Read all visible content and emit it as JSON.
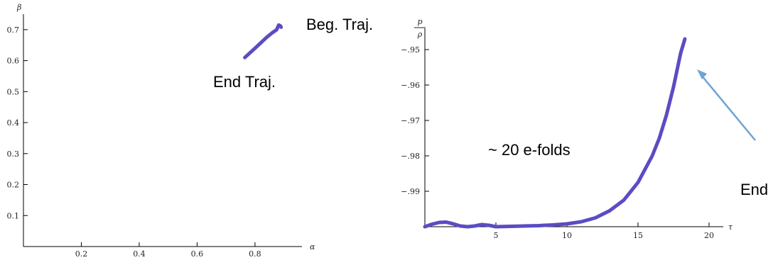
{
  "chart_data": [
    {
      "type": "line",
      "xlabel": "α",
      "ylabel": "β",
      "xlim": [
        0,
        0.95
      ],
      "ylim": [
        0,
        0.75
      ],
      "xticks": [
        0.2,
        0.4,
        0.6,
        0.8
      ],
      "yticks": [
        0.1,
        0.2,
        0.3,
        0.4,
        0.5,
        0.6,
        0.7
      ],
      "series": [
        {
          "x": [
            0.765,
            0.8,
            0.84,
            0.86,
            0.875,
            0.882,
            0.888,
            0.89
          ],
          "y": [
            0.61,
            0.64,
            0.675,
            0.69,
            0.7,
            0.715,
            0.712,
            0.708
          ]
        }
      ],
      "annotations": [
        "Beg. Traj.",
        "End Traj."
      ],
      "color": "#5b4cc4"
    },
    {
      "type": "line",
      "xlabel": "τ",
      "ylabel_num": "p",
      "ylabel_den": "ρ",
      "xlim": [
        0,
        21
      ],
      "ylim": [
        -1.0,
        -0.945
      ],
      "xticks": [
        5,
        10,
        15,
        20
      ],
      "yticks": [
        -0.95,
        -0.96,
        -0.97,
        -0.98,
        -0.99
      ],
      "series": [
        {
          "x": [
            0,
            0.5,
            1.0,
            1.5,
            2.0,
            2.5,
            3.0,
            3.5,
            4.0,
            4.5,
            5.0,
            6.0,
            7.0,
            8.0,
            9.0,
            10.0,
            11.0,
            12.0,
            13.0,
            14.0,
            15.0,
            16.0,
            16.5,
            17.0,
            17.5,
            18.0,
            18.3
          ],
          "y": [
            -1.0,
            -0.9993,
            -0.9988,
            -0.9987,
            -0.9992,
            -0.9998,
            -1.0,
            -0.9998,
            -0.9994,
            -0.9996,
            -1.0,
            -0.9999,
            -0.9998,
            -0.9997,
            -0.9995,
            -0.9992,
            -0.9986,
            -0.9975,
            -0.9955,
            -0.9925,
            -0.9875,
            -0.98,
            -0.975,
            -0.9685,
            -0.9605,
            -0.951,
            -0.947
          ]
        }
      ],
      "annotations": [
        "~ 20 e-folds",
        "End"
      ],
      "color": "#5b4cc4"
    }
  ]
}
